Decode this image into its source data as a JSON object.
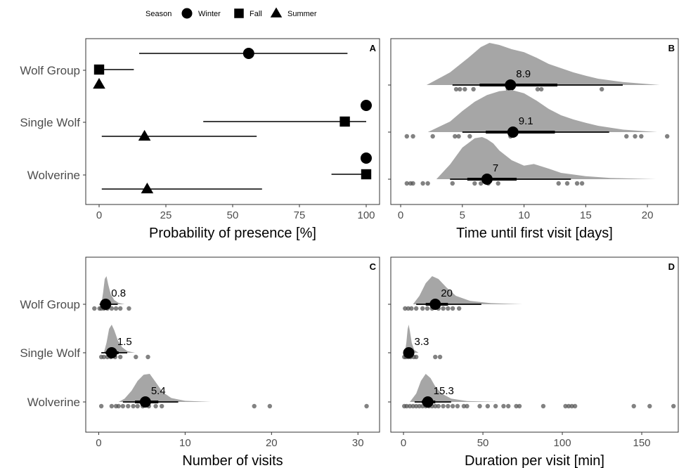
{
  "legend": {
    "title": "Season",
    "items": [
      {
        "label": "Winter",
        "shape": "circle"
      },
      {
        "label": "Fall",
        "shape": "square"
      },
      {
        "label": "Summer",
        "shape": "triangle"
      }
    ]
  },
  "colors": {
    "density": "#a6a6a6",
    "points": "#4d4d4d",
    "ink": "#000000",
    "tick_text": "#4d4d4d",
    "panel_border": "#333333"
  },
  "chart_data": [
    {
      "panel": "A",
      "type": "scatter",
      "xlabel": "Probability of presence [%]",
      "xlim": [
        -5,
        105
      ],
      "xticks": [
        0,
        25,
        50,
        75,
        100
      ],
      "categories": [
        "Wolf Group",
        "Single Wolf",
        "Wolverine"
      ],
      "series": [
        {
          "name": "Winter",
          "shape": "circle",
          "points": [
            {
              "category": "Wolf Group",
              "value": 56,
              "ci": [
                15,
                93
              ]
            },
            {
              "category": "Single Wolf",
              "value": 100
            },
            {
              "category": "Wolverine",
              "value": 100
            }
          ]
        },
        {
          "name": "Fall",
          "shape": "square",
          "points": [
            {
              "category": "Wolf Group",
              "value": 0,
              "ci": [
                0,
                13
              ]
            },
            {
              "category": "Single Wolf",
              "value": 92,
              "ci": [
                39,
                100
              ]
            },
            {
              "category": "Wolverine",
              "value": 100,
              "ci": [
                87,
                100
              ]
            }
          ]
        },
        {
          "name": "Summer",
          "shape": "triangle",
          "points": [
            {
              "category": "Wolf Group",
              "value": 0
            },
            {
              "category": "Single Wolf",
              "value": 17,
              "ci": [
                1,
                59
              ]
            },
            {
              "category": "Wolverine",
              "value": 18,
              "ci": [
                1,
                61
              ]
            }
          ]
        }
      ]
    },
    {
      "panel": "B",
      "type": "scatter",
      "xlabel": "Time until first visit [days]",
      "xlim": [
        -0.8,
        22.5
      ],
      "xticks": [
        0,
        5,
        10,
        15,
        20
      ],
      "categories": [
        "Wolf Group",
        "Single Wolf",
        "Wolverine"
      ],
      "groups": [
        {
          "category": "Wolf Group",
          "mean": 8.9,
          "label": "8.9",
          "ci_inner": [
            6.4,
            12.7
          ],
          "ci_outer": [
            4.2,
            18.0
          ],
          "density_x": [
            2.1,
            4,
            5.5,
            6.5,
            7.2,
            8,
            9,
            10,
            11,
            12,
            13,
            14,
            15,
            16,
            18,
            21
          ],
          "density_y": [
            0,
            0.3,
            0.65,
            0.9,
            1.0,
            0.95,
            0.85,
            0.78,
            0.65,
            0.5,
            0.4,
            0.3,
            0.22,
            0.15,
            0.07,
            0
          ],
          "observations": [
            4.5,
            4.8,
            5.2,
            5.9,
            8.7,
            11.1,
            11.4,
            16.3
          ]
        },
        {
          "category": "Single Wolf",
          "mean": 9.1,
          "label": "9.1",
          "ci_inner": [
            6.9,
            12.5
          ],
          "ci_outer": [
            5.0,
            16.9
          ],
          "density_x": [
            2.2,
            4,
            5,
            6,
            7,
            8,
            9,
            10,
            11,
            12,
            13,
            14,
            15,
            16,
            18,
            20.8
          ],
          "density_y": [
            0,
            0.25,
            0.5,
            0.72,
            0.88,
            0.97,
            1.0,
            0.92,
            0.75,
            0.55,
            0.4,
            0.3,
            0.22,
            0.15,
            0.06,
            0
          ],
          "observations": [
            0.5,
            1.0,
            2.6,
            4.4,
            4.7,
            5.6,
            8.9,
            18.3,
            19.0,
            19.5,
            21.6
          ]
        },
        {
          "category": "Wolverine",
          "mean": 7.0,
          "label": "7",
          "ci_inner": [
            5.4,
            9.4
          ],
          "ci_outer": [
            4.0,
            13.8
          ],
          "density_x": [
            2.9,
            4,
            5,
            6,
            6.6,
            7,
            7.5,
            8,
            9,
            10,
            10.8,
            12,
            13,
            15,
            17,
            20.7
          ],
          "density_y": [
            0,
            0.35,
            0.75,
            0.97,
            1.0,
            0.95,
            0.85,
            0.68,
            0.45,
            0.32,
            0.36,
            0.25,
            0.15,
            0.07,
            0.03,
            0
          ],
          "observations": [
            0.5,
            0.8,
            1.0,
            1.8,
            2.2,
            4.2,
            6.0,
            6.5,
            7.1,
            7.9,
            12.8,
            13.5,
            14.3,
            14.7
          ]
        }
      ]
    },
    {
      "panel": "C",
      "type": "scatter",
      "xlabel": "Number of visits",
      "xlim": [
        -1.5,
        32.5
      ],
      "xticks": [
        0,
        10,
        20,
        30
      ],
      "categories": [
        "Wolf Group",
        "Single Wolf",
        "Wolverine"
      ],
      "groups": [
        {
          "category": "Wolf Group",
          "mean": 0.8,
          "label": "0.8",
          "ci_inner": [
            0.4,
            1.4
          ],
          "ci_outer": [
            0.1,
            2.2
          ],
          "density_x": [
            0.3,
            0.5,
            0.7,
            0.9,
            1.1,
            1.4,
            1.8,
            2.3,
            3
          ],
          "density_y": [
            0,
            0.4,
            0.9,
            1.0,
            0.7,
            0.35,
            0.15,
            0.05,
            0
          ],
          "observations": [
            -0.5,
            0.1,
            0.3,
            0.6,
            1.0,
            1.5,
            2.0,
            2.5,
            3.5
          ]
        },
        {
          "category": "Single Wolf",
          "mean": 1.5,
          "label": "1.5",
          "ci_inner": [
            0.8,
            2.3
          ],
          "ci_outer": [
            0.3,
            3.3
          ],
          "density_x": [
            0.6,
            0.9,
            1.2,
            1.5,
            1.8,
            2.2,
            2.7,
            3.3,
            4.2
          ],
          "density_y": [
            0,
            0.35,
            0.85,
            1.0,
            0.8,
            0.45,
            0.2,
            0.06,
            0
          ],
          "observations": [
            0.3,
            0.6,
            1.0,
            1.4,
            1.9,
            2.5,
            4.3,
            5.7
          ]
        },
        {
          "category": "Wolverine",
          "mean": 5.4,
          "label": "5.4",
          "ci_inner": [
            4.2,
            6.9
          ],
          "ci_outer": [
            2.8,
            9.2
          ],
          "density_x": [
            2.3,
            3,
            3.8,
            4.5,
            5.2,
            5.9,
            6.6,
            7.4,
            8.4,
            10,
            13
          ],
          "density_y": [
            0,
            0.12,
            0.4,
            0.75,
            0.97,
            1.0,
            0.7,
            0.35,
            0.14,
            0.04,
            0
          ],
          "observations": [
            0.3,
            1.5,
            2.0,
            2.3,
            2.8,
            3.4,
            4.0,
            4.5,
            5.1,
            5.8,
            6.6,
            7.3,
            18.0,
            19.8,
            31.0
          ]
        }
      ]
    },
    {
      "panel": "D",
      "type": "scatter",
      "xlabel": "Duration per visit [min]",
      "xlim": [
        -8,
        173
      ],
      "xticks": [
        0,
        50,
        100,
        150
      ],
      "categories": [
        "Wolf Group",
        "Single Wolf",
        "Wolverine"
      ],
      "groups": [
        {
          "category": "Wolf Group",
          "mean": 20,
          "label": "20",
          "ci_inner": [
            14,
            28
          ],
          "ci_outer": [
            8,
            49
          ],
          "density_x": [
            6,
            10,
            14,
            18,
            22,
            27,
            33,
            42,
            55,
            75
          ],
          "density_y": [
            0,
            0.3,
            0.75,
            1.0,
            0.9,
            0.6,
            0.3,
            0.12,
            0.04,
            0
          ],
          "observations": [
            1,
            3,
            5,
            8,
            12,
            15,
            18,
            22,
            25,
            28,
            31,
            35
          ]
        },
        {
          "category": "Single Wolf",
          "mean": 3.3,
          "label": "3.3",
          "ci_inner": [
            2.2,
            4.7
          ],
          "ci_outer": [
            1.3,
            6.8
          ],
          "density_x": [
            0.8,
            1.8,
            2.6,
            3.3,
            4.1,
            5.2,
            6.8,
            9.5
          ],
          "density_y": [
            0,
            0.35,
            0.85,
            1.0,
            0.75,
            0.35,
            0.1,
            0
          ],
          "observations": [
            0.5,
            1.5,
            3.0,
            4.5,
            6.5,
            8.0,
            20.0,
            23.0
          ]
        },
        {
          "category": "Wolverine",
          "mean": 15.3,
          "label": "15.3",
          "ci_inner": [
            11.5,
            20
          ],
          "ci_outer": [
            7,
            30
          ],
          "density_x": [
            4,
            8,
            11,
            14,
            17,
            20,
            24,
            30,
            40,
            60
          ],
          "density_y": [
            0,
            0.3,
            0.75,
            1.0,
            0.85,
            0.55,
            0.3,
            0.12,
            0.03,
            0
          ],
          "observations": [
            0.5,
            2,
            4,
            6,
            8,
            10,
            12,
            14,
            16,
            18,
            20,
            22,
            25,
            28,
            31,
            34,
            38,
            40,
            48,
            53,
            58,
            63,
            66,
            71,
            73,
            88,
            102,
            104,
            106,
            108,
            145,
            155,
            170
          ]
        }
      ]
    }
  ]
}
